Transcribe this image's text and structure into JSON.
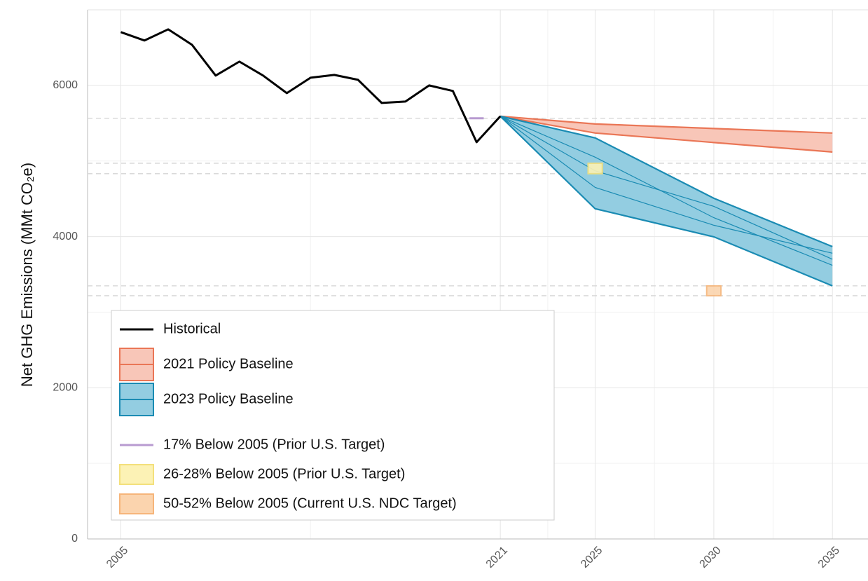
{
  "chart_data": {
    "type": "line",
    "y_label": "Net GHG Emissions (MMt CO₂e)",
    "xlim": [
      2003.6,
      2036.5
    ],
    "ylim": [
      0,
      7000
    ],
    "xticks": [
      2005,
      2021,
      2025,
      2030,
      2035
    ],
    "yticks": [
      0,
      2000,
      4000,
      6000
    ],
    "grid": true,
    "legend_position": "bottom-left",
    "series": [
      {
        "name": "Historical",
        "color": "#000000",
        "x": [
          2005,
          2006,
          2007,
          2008,
          2009,
          2010,
          2011,
          2012,
          2013,
          2014,
          2015,
          2016,
          2017,
          2018,
          2019,
          2020,
          2021
        ],
        "values": [
          6705,
          6594,
          6742,
          6538,
          6130,
          6315,
          6130,
          5898,
          6102,
          6139,
          6074,
          5768,
          5787,
          6000,
          5926,
          5249,
          5592
        ]
      }
    ],
    "bands": [
      {
        "name": "2021 Policy Baseline",
        "color": "#ea7656",
        "fill": "#f8c6b8",
        "x": [
          2021,
          2025,
          2035
        ],
        "upper": [
          5592,
          5490,
          5370
        ],
        "lower": [
          5592,
          5370,
          5119
        ]
      },
      {
        "name": "2023 Policy Baseline",
        "color": "#1a8bb3",
        "fill": "#93cde1",
        "x": [
          2021,
          2025,
          2030,
          2035
        ],
        "upper": [
          5592,
          5305,
          4507,
          3867
        ],
        "lower": [
          5592,
          4368,
          3997,
          3348
        ],
        "lines": [
          [
            5592,
            4870,
            4400,
            3700
          ],
          [
            5592,
            4650,
            4150,
            3780
          ],
          [
            5592,
            5050,
            4250,
            3620
          ]
        ]
      }
    ],
    "targets": [
      {
        "name": "17% Below 2005 (Prior U.S. Target)",
        "kind": "line",
        "color": "#b89bd0",
        "x": 2020,
        "values": [
          5565
        ]
      },
      {
        "name": "26-28% Below 2005 (Prior U.S. Target)",
        "kind": "box",
        "color": "#f3e07c",
        "fill": "#fcf2b5",
        "x": 2025,
        "values": [
          4832,
          4970
        ]
      },
      {
        "name": "50-52% Below 2005 (Current U.S. NDC Target)",
        "kind": "box",
        "color": "#f6b57a",
        "fill": "#fbd4ae",
        "x": 2030,
        "values": [
          3218,
          3348
        ]
      }
    ]
  }
}
